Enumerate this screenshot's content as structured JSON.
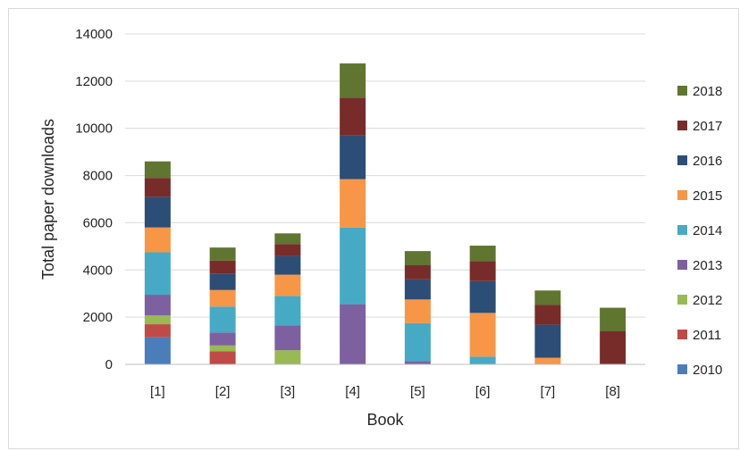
{
  "chart_data": {
    "type": "bar",
    "stacked": true,
    "categories": [
      "[1]",
      "[2]",
      "[3]",
      "[4]",
      "[5]",
      "[6]",
      "[7]",
      "[8]"
    ],
    "series": [
      {
        "name": "2010",
        "color": "#4a7ebb",
        "values": [
          1150,
          0,
          0,
          0,
          0,
          0,
          0,
          0
        ]
      },
      {
        "name": "2011",
        "color": "#be4b48",
        "values": [
          550,
          550,
          0,
          0,
          0,
          0,
          0,
          0
        ]
      },
      {
        "name": "2012",
        "color": "#98b954",
        "values": [
          380,
          250,
          600,
          0,
          0,
          0,
          0,
          0
        ]
      },
      {
        "name": "2013",
        "color": "#7d60a0",
        "values": [
          870,
          550,
          1050,
          2550,
          130,
          0,
          0,
          0
        ]
      },
      {
        "name": "2014",
        "color": "#46aac4",
        "values": [
          1800,
          1100,
          1250,
          3250,
          1620,
          330,
          0,
          0
        ]
      },
      {
        "name": "2015",
        "color": "#f79646",
        "values": [
          1050,
          700,
          900,
          2050,
          1000,
          1850,
          280,
          0
        ]
      },
      {
        "name": "2016",
        "color": "#2c4d75",
        "values": [
          1300,
          700,
          800,
          1850,
          850,
          1350,
          1400,
          0
        ]
      },
      {
        "name": "2017",
        "color": "#772c2a",
        "values": [
          800,
          550,
          500,
          1600,
          600,
          850,
          850,
          1400
        ]
      },
      {
        "name": "2018",
        "color": "#5f7530",
        "values": [
          700,
          550,
          450,
          1450,
          600,
          650,
          600,
          1000
        ]
      }
    ],
    "xlabel": "Book",
    "ylabel": "Total paper downloads",
    "ylim": [
      0,
      14000
    ],
    "yticks": [
      "0",
      "2000",
      "4000",
      "6000",
      "8000",
      "10000",
      "12000",
      "14000"
    ],
    "grid": true,
    "legend_position": "right"
  }
}
